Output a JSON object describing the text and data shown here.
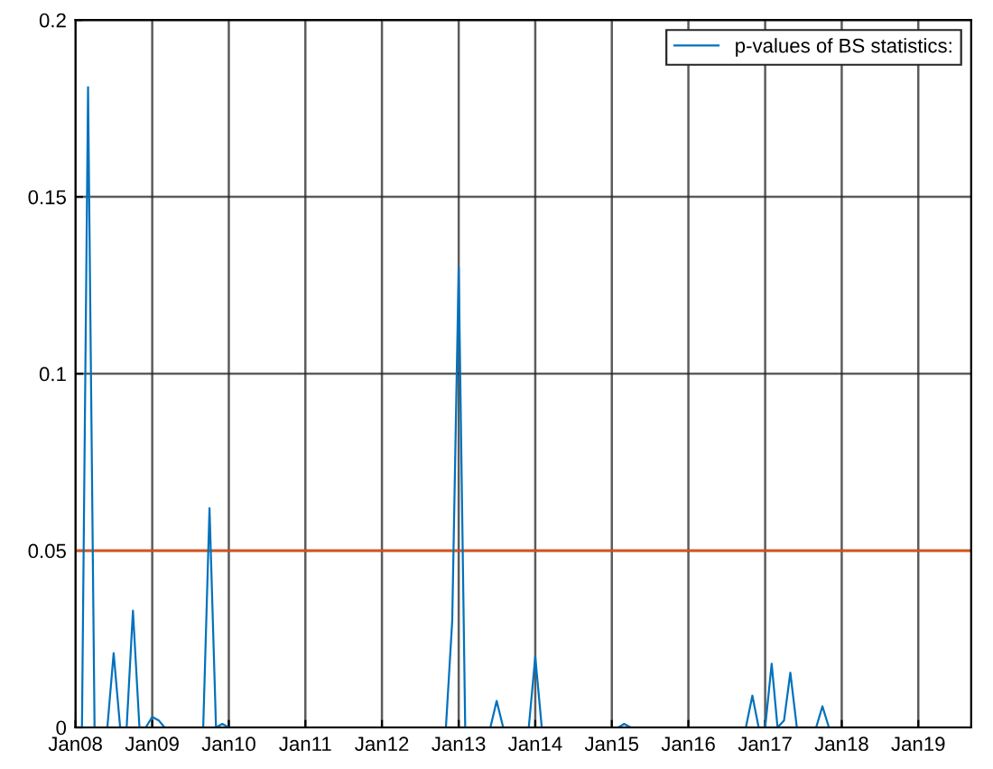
{
  "chart_data": {
    "type": "line",
    "x": [
      "2008-02",
      "2008-03",
      "2008-04",
      "2008-06",
      "2008-07",
      "2008-08",
      "2008-09",
      "2008-10",
      "2008-11",
      "2008-12",
      "2009-01",
      "2009-02",
      "2009-03",
      "2009-09",
      "2009-10",
      "2009-11",
      "2009-12",
      "2010-01",
      "2012-11",
      "2012-12",
      "2013-01",
      "2013-02",
      "2013-06",
      "2013-07",
      "2013-08",
      "2013-12",
      "2014-01",
      "2014-02",
      "2015-02",
      "2015-03",
      "2015-04",
      "2016-10",
      "2016-11",
      "2016-12",
      "2017-01",
      "2017-02",
      "2017-03",
      "2017-04",
      "2017-05",
      "2017-06",
      "2017-09",
      "2017-10",
      "2017-11",
      "2019-08"
    ],
    "series": [
      {
        "name": "p-values of BS statistics:",
        "color": "#0072bd",
        "values": [
          0,
          0.181,
          0,
          0,
          0.021,
          0,
          0,
          0.033,
          0,
          0,
          0.003,
          0.002,
          0,
          0,
          0.062,
          0,
          0.001,
          0,
          0,
          0.03,
          0.13,
          0,
          0,
          0.0075,
          0,
          0,
          0.02,
          0,
          0,
          0.001,
          0,
          0,
          0.009,
          0,
          0,
          0.018,
          0,
          0.002,
          0.0155,
          0,
          0,
          0.006,
          0,
          0
        ]
      }
    ],
    "ref_lines": [
      {
        "axis": "y",
        "value": 0.05,
        "color": "#d95319"
      }
    ],
    "xlim": [
      "2008-01-01",
      "2019-09-10"
    ],
    "xticks": [
      {
        "value": "2008-01",
        "label": "Jan08"
      },
      {
        "value": "2009-01",
        "label": "Jan09"
      },
      {
        "value": "2010-01",
        "label": "Jan10"
      },
      {
        "value": "2011-01",
        "label": "Jan11"
      },
      {
        "value": "2012-01",
        "label": "Jan12"
      },
      {
        "value": "2013-01",
        "label": "Jan13"
      },
      {
        "value": "2014-01",
        "label": "Jan14"
      },
      {
        "value": "2015-01",
        "label": "Jan15"
      },
      {
        "value": "2016-01",
        "label": "Jan16"
      },
      {
        "value": "2017-01",
        "label": "Jan17"
      },
      {
        "value": "2018-01",
        "label": "Jan18"
      },
      {
        "value": "2019-01",
        "label": "Jan19"
      }
    ],
    "ylim": [
      0,
      0.2
    ],
    "yticks": [
      0,
      0.05,
      0.1,
      0.15,
      0.2
    ],
    "grid": true,
    "legend": "top right"
  }
}
